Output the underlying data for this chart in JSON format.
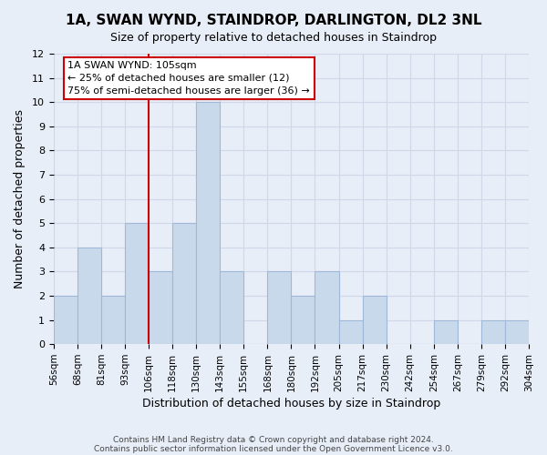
{
  "title": "1A, SWAN WYND, STAINDROP, DARLINGTON, DL2 3NL",
  "subtitle": "Size of property relative to detached houses in Staindrop",
  "xlabel": "Distribution of detached houses by size in Staindrop",
  "ylabel": "Number of detached properties",
  "bin_labels": [
    "56sqm",
    "68sqm",
    "81sqm",
    "93sqm",
    "106sqm",
    "118sqm",
    "130sqm",
    "143sqm",
    "155sqm",
    "168sqm",
    "180sqm",
    "192sqm",
    "205sqm",
    "217sqm",
    "230sqm",
    "242sqm",
    "254sqm",
    "267sqm",
    "279sqm",
    "292sqm",
    "304sqm"
  ],
  "bar_heights": [
    2,
    4,
    2,
    5,
    3,
    5,
    10,
    3,
    0,
    3,
    2,
    3,
    1,
    2,
    0,
    0,
    1,
    0,
    1,
    1
  ],
  "bar_color": "#c9d9ec",
  "bar_edge_color": "#a0b8d8",
  "vline_x": 4,
  "vline_color": "#cc0000",
  "ylim": [
    0,
    12
  ],
  "yticks": [
    0,
    1,
    2,
    3,
    4,
    5,
    6,
    7,
    8,
    9,
    10,
    11,
    12
  ],
  "annotation_title": "1A SWAN WYND: 105sqm",
  "annotation_line1": "← 25% of detached houses are smaller (12)",
  "annotation_line2": "75% of semi-detached houses are larger (36) →",
  "annotation_box_color": "#ffffff",
  "annotation_box_edge": "#cc0000",
  "grid_color": "#d0d8e8",
  "background_color": "#e8eef8",
  "footer1": "Contains HM Land Registry data © Crown copyright and database right 2024.",
  "footer2": "Contains public sector information licensed under the Open Government Licence v3.0."
}
